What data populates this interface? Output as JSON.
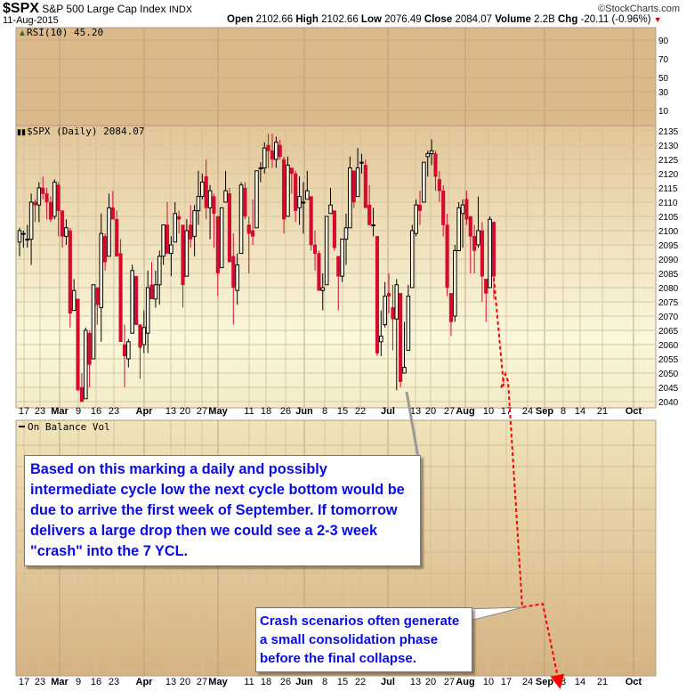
{
  "header": {
    "symbol": "$SPX",
    "name": "S&P 500 Large Cap Index",
    "exchange": "INDX",
    "date": "11-Aug-2015",
    "watermark": "©StockCharts.com",
    "open_label": "Open",
    "open": "2102.66",
    "high_label": "High",
    "high": "2102.66",
    "low_label": "Low",
    "low": "2076.49",
    "close_label": "Close",
    "close": "2084.07",
    "volume_label": "Volume",
    "volume": "2.2B",
    "chg_label": "Chg",
    "chg": "-20.11 (-0.96%)"
  },
  "annotations": {
    "box1": "Based on this marking a daily and possibly intermediate cycle low the next cycle bottom would be due to arrive the first week of September. If tomorrow delivers a large drop then we could see a 2-3 week \"crash\" into the 7 YCL.",
    "box2": "Crash scenarios often generate a small consolidation phase before the final collapse.",
    "text_color": "#0a0ae6",
    "projection_color": "#ff0000"
  },
  "chart_data": [
    {
      "type": "line",
      "panel": "RSI",
      "label": "RSI(10) 45.20",
      "yticks": [
        "90",
        "70",
        "50",
        "30",
        "10"
      ],
      "ylim": [
        0,
        100
      ]
    },
    {
      "type": "candlestick",
      "panel": "price",
      "label": "$SPX (Daily) 2084.07",
      "ylim": [
        2038,
        2137
      ],
      "yticks": [
        "2135",
        "2130",
        "2125",
        "2120",
        "2115",
        "2110",
        "2105",
        "2100",
        "2095",
        "2090",
        "2085",
        "2080",
        "2075",
        "2070",
        "2065",
        "2060",
        "2055",
        "2050",
        "2045",
        "2040"
      ],
      "xticks": [
        {
          "t": "17",
          "b": false
        },
        {
          "t": "23",
          "b": false
        },
        {
          "t": "Mar",
          "b": true
        },
        {
          "t": "9",
          "b": false
        },
        {
          "t": "16",
          "b": false
        },
        {
          "t": "23",
          "b": false
        },
        {
          "t": "Apr",
          "b": true
        },
        {
          "t": "13",
          "b": false
        },
        {
          "t": "20",
          "b": false
        },
        {
          "t": "27",
          "b": false
        },
        {
          "t": "May",
          "b": true
        },
        {
          "t": "11",
          "b": false
        },
        {
          "t": "18",
          "b": false
        },
        {
          "t": "26",
          "b": false
        },
        {
          "t": "Jun",
          "b": true
        },
        {
          "t": "8",
          "b": false
        },
        {
          "t": "15",
          "b": false
        },
        {
          "t": "22",
          "b": false
        },
        {
          "t": "Jul",
          "b": true
        },
        {
          "t": "13",
          "b": false
        },
        {
          "t": "20",
          "b": false
        },
        {
          "t": "27",
          "b": false
        },
        {
          "t": "Aug",
          "b": true
        },
        {
          "t": "10",
          "b": false
        },
        {
          "t": "17",
          "b": false
        },
        {
          "t": "24",
          "b": false
        },
        {
          "t": "Sep",
          "b": true
        },
        {
          "t": "8",
          "b": false
        },
        {
          "t": "14",
          "b": false
        },
        {
          "t": "21",
          "b": false
        },
        {
          "t": "Oct",
          "b": true
        }
      ],
      "up_color": "#000000",
      "down_color": "#d40a2e",
      "columns": [
        "date",
        "open",
        "high",
        "low",
        "close"
      ],
      "ohlc": [
        [
          "02-17",
          2096,
          2101,
          2091,
          2100
        ],
        [
          "02-18",
          2099,
          2100,
          2094,
          2099
        ],
        [
          "02-19",
          2097,
          2102,
          2094,
          2097
        ],
        [
          "02-20",
          2097,
          2113,
          2088,
          2110
        ],
        [
          "02-23",
          2110,
          2111,
          2103,
          2109
        ],
        [
          "02-24",
          2109,
          2117,
          2103,
          2115
        ],
        [
          "02-25",
          2115,
          2119,
          2111,
          2113
        ],
        [
          "02-26",
          2113,
          2115,
          2104,
          2110
        ],
        [
          "02-27",
          2110,
          2112,
          2103,
          2104
        ],
        [
          "03-02",
          2105,
          2118,
          2104,
          2117
        ],
        [
          "03-03",
          2116,
          2117,
          2098,
          2107
        ],
        [
          "03-04",
          2107,
          2107,
          2094,
          2098
        ],
        [
          "03-05",
          2098,
          2104,
          2095,
          2101
        ],
        [
          "03-06",
          2100,
          2101,
          2066,
          2071
        ],
        [
          "03-09",
          2072,
          2083,
          2072,
          2079
        ],
        [
          "03-10",
          2076,
          2076,
          2044,
          2044
        ],
        [
          "03-11",
          2045,
          2050,
          2040,
          2040
        ],
        [
          "03-12",
          2041,
          2066,
          2041,
          2065
        ],
        [
          "03-13",
          2064,
          2065,
          2045,
          2053
        ],
        [
          "03-16",
          2055,
          2081,
          2055,
          2081
        ],
        [
          "03-17",
          2080,
          2080,
          2067,
          2074
        ],
        [
          "03-18",
          2073,
          2106,
          2061,
          2099
        ],
        [
          "03-19",
          2098,
          2099,
          2086,
          2089
        ],
        [
          "03-20",
          2091,
          2113,
          2091,
          2108
        ],
        [
          "03-23",
          2108,
          2114,
          2104,
          2104
        ],
        [
          "03-24",
          2104,
          2107,
          2091,
          2091
        ],
        [
          "03-25",
          2092,
          2097,
          2061,
          2061
        ],
        [
          "03-26",
          2060,
          2067,
          2045,
          2056
        ],
        [
          "03-27",
          2055,
          2062,
          2052,
          2061
        ],
        [
          "03-30",
          2064,
          2088,
          2064,
          2086
        ],
        [
          "03-31",
          2084,
          2084,
          2067,
          2067
        ],
        [
          "04-01",
          2067,
          2067,
          2048,
          2059
        ],
        [
          "04-02",
          2060,
          2072,
          2057,
          2066
        ],
        [
          "04-06",
          2064,
          2086,
          2057,
          2080
        ],
        [
          "04-07",
          2081,
          2089,
          2076,
          2076
        ],
        [
          "04-08",
          2076,
          2086,
          2073,
          2081
        ],
        [
          "04-09",
          2081,
          2093,
          2074,
          2091
        ],
        [
          "04-10",
          2091,
          2102,
          2088,
          2102
        ],
        [
          "04-13",
          2102,
          2110,
          2092,
          2092
        ],
        [
          "04-14",
          2092,
          2098,
          2084,
          2095
        ],
        [
          "04-15",
          2096,
          2110,
          2096,
          2106
        ],
        [
          "04-16",
          2105,
          2107,
          2099,
          2104
        ],
        [
          "04-17",
          2102,
          2102,
          2073,
          2081
        ],
        [
          "04-20",
          2084,
          2104,
          2084,
          2100
        ],
        [
          "04-21",
          2102,
          2109,
          2094,
          2097
        ],
        [
          "04-22",
          2098,
          2109,
          2091,
          2107
        ],
        [
          "04-23",
          2107,
          2121,
          2102,
          2112
        ],
        [
          "04-24",
          2112,
          2120,
          2111,
          2117
        ],
        [
          "04-27",
          2119,
          2125,
          2104,
          2108
        ],
        [
          "04-28",
          2108,
          2116,
          2097,
          2114
        ],
        [
          "04-29",
          2112,
          2113,
          2094,
          2106
        ],
        [
          "04-30",
          2105,
          2105,
          2077,
          2085
        ],
        [
          "05-01",
          2087,
          2108,
          2087,
          2108
        ],
        [
          "05-04",
          2110,
          2121,
          2110,
          2114
        ],
        [
          "05-05",
          2113,
          2115,
          2089,
          2089
        ],
        [
          "05-06",
          2091,
          2099,
          2067,
          2080
        ],
        [
          "05-07",
          2079,
          2092,
          2074,
          2088
        ],
        [
          "05-08",
          2092,
          2117,
          2092,
          2116
        ],
        [
          "05-11",
          2115,
          2117,
          2104,
          2105
        ],
        [
          "05-12",
          2102,
          2105,
          2085,
          2099
        ],
        [
          "05-13",
          2100,
          2111,
          2095,
          2098
        ],
        [
          "05-14",
          2101,
          2121,
          2101,
          2121
        ],
        [
          "05-15",
          2122,
          2124,
          2117,
          2122
        ],
        [
          "05-18",
          2122,
          2131,
          2120,
          2129
        ],
        [
          "05-19",
          2130,
          2134,
          2122,
          2128
        ],
        [
          "05-20",
          2128,
          2134,
          2122,
          2125
        ],
        [
          "05-21",
          2125,
          2133,
          2122,
          2131
        ],
        [
          "05-22",
          2130,
          2132,
          2125,
          2126
        ],
        [
          "05-26",
          2125,
          2126,
          2099,
          2104
        ],
        [
          "05-27",
          2105,
          2126,
          2105,
          2123
        ],
        [
          "05-28",
          2122,
          2122,
          2113,
          2120
        ],
        [
          "05-29",
          2120,
          2121,
          2103,
          2107
        ],
        [
          "06-01",
          2108,
          2119,
          2102,
          2112
        ],
        [
          "06-02",
          2110,
          2117,
          2099,
          2110
        ],
        [
          "06-03",
          2111,
          2121,
          2111,
          2114
        ],
        [
          "06-04",
          2112,
          2112,
          2093,
          2095
        ],
        [
          "06-05",
          2095,
          2100,
          2086,
          2092
        ],
        [
          "06-08",
          2092,
          2093,
          2079,
          2079
        ],
        [
          "06-09",
          2079,
          2085,
          2072,
          2080
        ],
        [
          "06-10",
          2081,
          2105,
          2081,
          2105
        ],
        [
          "06-11",
          2106,
          2115,
          2106,
          2109
        ],
        [
          "06-12",
          2107,
          2107,
          2093,
          2094
        ],
        [
          "06-15",
          2091,
          2091,
          2072,
          2084
        ],
        [
          "06-16",
          2084,
          2097,
          2082,
          2097
        ],
        [
          "06-17",
          2097,
          2106,
          2088,
          2101
        ],
        [
          "06-18",
          2101,
          2126,
          2101,
          2122
        ],
        [
          "06-19",
          2121,
          2121,
          2108,
          2110
        ],
        [
          "06-22",
          2112,
          2129,
          2112,
          2122
        ],
        [
          "06-23",
          2124,
          2127,
          2120,
          2124
        ],
        [
          "06-24",
          2123,
          2125,
          2108,
          2108
        ],
        [
          "06-25",
          2109,
          2116,
          2102,
          2102
        ],
        [
          "06-26",
          2102,
          2108,
          2098,
          2102
        ],
        [
          "06-29",
          2098,
          2098,
          2056,
          2057
        ],
        [
          "06-30",
          2061,
          2072,
          2056,
          2063
        ],
        [
          "07-01",
          2067,
          2082,
          2066,
          2077
        ],
        [
          "07-02",
          2078,
          2085,
          2071,
          2077
        ],
        [
          "07-06",
          2073,
          2081,
          2058,
          2069
        ],
        [
          "07-07",
          2069,
          2083,
          2044,
          2081
        ],
        [
          "07-08",
          2078,
          2078,
          2045,
          2047
        ],
        [
          "07-09",
          2050,
          2068,
          2050,
          2052
        ],
        [
          "07-10",
          2058,
          2081,
          2058,
          2077
        ],
        [
          "07-13",
          2080,
          2102,
          2080,
          2100
        ],
        [
          "07-14",
          2099,
          2111,
          2098,
          2109
        ],
        [
          "07-15",
          2109,
          2114,
          2102,
          2107
        ],
        [
          "07-16",
          2110,
          2124,
          2110,
          2124
        ],
        [
          "07-17",
          2126,
          2128,
          2119,
          2127
        ],
        [
          "07-20",
          2127,
          2132,
          2123,
          2128
        ],
        [
          "07-21",
          2127,
          2128,
          2114,
          2119
        ],
        [
          "07-22",
          2118,
          2121,
          2110,
          2114
        ],
        [
          "07-23",
          2114,
          2116,
          2098,
          2102
        ],
        [
          "07-24",
          2102,
          2106,
          2077,
          2080
        ],
        [
          "07-27",
          2078,
          2078,
          2063,
          2068
        ],
        [
          "07-28",
          2070,
          2095,
          2068,
          2093
        ],
        [
          "07-29",
          2093,
          2110,
          2093,
          2108
        ],
        [
          "07-30",
          2106,
          2111,
          2094,
          2109
        ],
        [
          "07-31",
          2111,
          2114,
          2102,
          2104
        ],
        [
          "08-03",
          2105,
          2105,
          2085,
          2098
        ],
        [
          "08-04",
          2098,
          2102,
          2085,
          2093
        ],
        [
          "08-05",
          2095,
          2112,
          2094,
          2100
        ],
        [
          "08-06",
          2100,
          2103,
          2075,
          2084
        ],
        [
          "08-07",
          2083,
          2083,
          2068,
          2078
        ],
        [
          "08-10",
          2080,
          2105,
          2080,
          2104
        ],
        [
          "08-11",
          2103,
          2103,
          2076,
          2084
        ]
      ]
    },
    {
      "type": "line",
      "panel": "OBV",
      "label": "On Balance Vol"
    }
  ]
}
